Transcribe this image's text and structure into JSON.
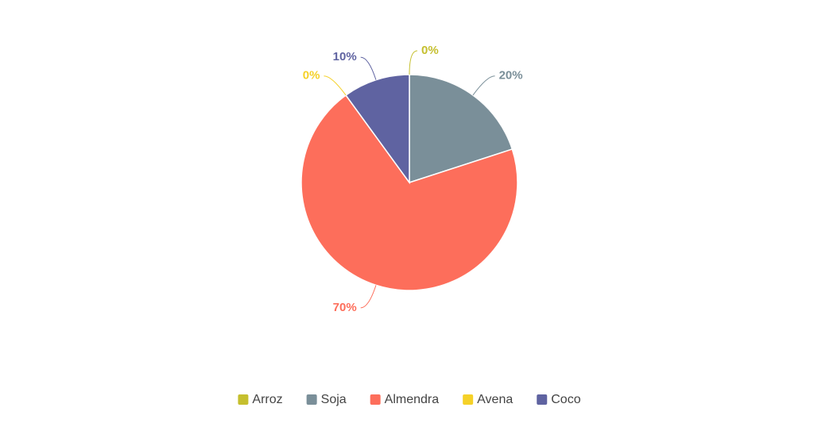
{
  "chart_data": {
    "type": "pie",
    "categories": [
      "Arroz",
      "Soja",
      "Almendra",
      "Avena",
      "Coco"
    ],
    "values": [
      0,
      20,
      70,
      0,
      10
    ],
    "value_labels": [
      "0%",
      "20%",
      "70%",
      "0%",
      "10%"
    ],
    "colors": [
      "#c5bf2e",
      "#7a8f99",
      "#fd6e5b",
      "#f5d128",
      "#5f63a1"
    ],
    "legend": "bottom"
  }
}
